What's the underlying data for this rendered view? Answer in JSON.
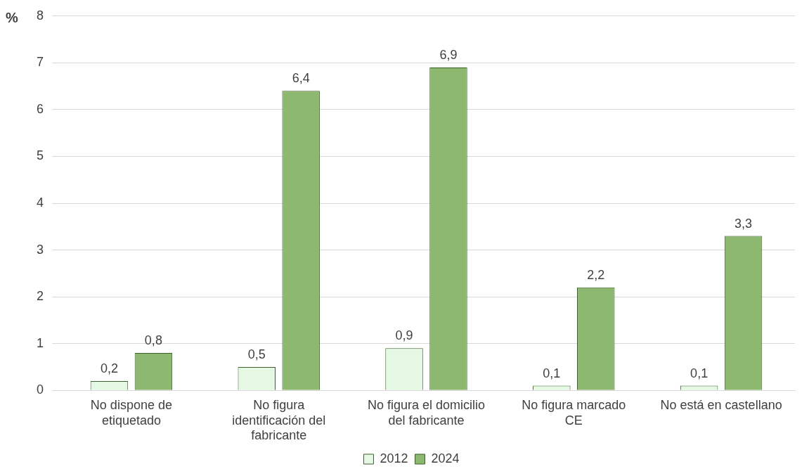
{
  "chart_data": {
    "type": "bar",
    "ylabel": "%",
    "categories": [
      "No dispone de etiquetado",
      "No figura identificación del fabricante",
      "No figura el domicilio del fabricante",
      "No figura marcado CE",
      "No está en castellano"
    ],
    "series": [
      {
        "name": "2012",
        "color": "#e4f8e4",
        "values": [
          0.2,
          0.5,
          0.9,
          0.1,
          0.1
        ],
        "value_labels": [
          "0,2",
          "0,5",
          "0,9",
          "0,1",
          "0,1"
        ]
      },
      {
        "name": "2024",
        "color": "#8db870",
        "values": [
          0.8,
          6.4,
          6.9,
          2.2,
          3.3
        ],
        "value_labels": [
          "0,8",
          "6,4",
          "6,9",
          "2,2",
          "3,3"
        ]
      }
    ],
    "ylim": [
      0,
      8
    ],
    "yticks": [
      0,
      1,
      2,
      3,
      4,
      5,
      6,
      7,
      8
    ],
    "grid": "y",
    "legend": "bottom"
  }
}
